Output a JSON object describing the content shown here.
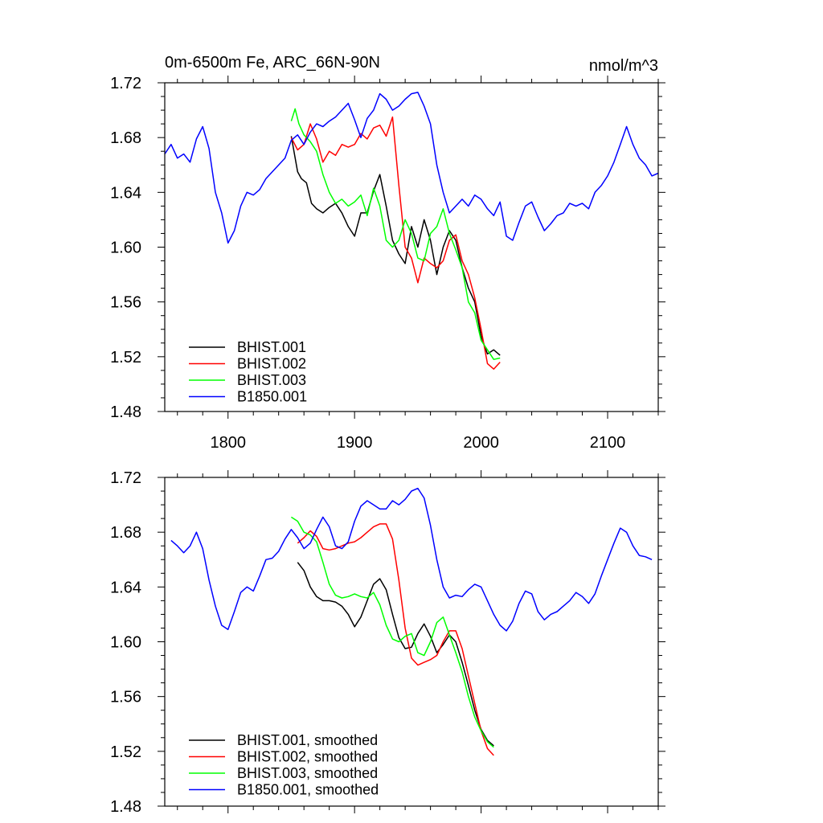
{
  "chart_data": [
    {
      "type": "line",
      "title": "0m-6500m Fe, ARC_66N-90N",
      "units": "nmol/m^3",
      "xlim": [
        1750,
        2140
      ],
      "ylim": [
        1.48,
        1.72
      ],
      "xticks": [
        1800,
        1900,
        2000,
        2100
      ],
      "xtick_labels": [
        "1800",
        "1900",
        "2000",
        "2100"
      ],
      "yticks": [
        1.48,
        1.52,
        1.56,
        1.6,
        1.64,
        1.68,
        1.72
      ],
      "ytick_labels": [
        "1.48",
        "1.52",
        "1.56",
        "1.60",
        "1.64",
        "1.68",
        "1.72"
      ],
      "legend_position": "bottom-left",
      "series": [
        {
          "name": "BHIST.001",
          "color": "#000000",
          "x": [
            1850,
            1855,
            1858,
            1862,
            1866,
            1870,
            1875,
            1880,
            1885,
            1890,
            1895,
            1900,
            1905,
            1910,
            1915,
            1920,
            1925,
            1930,
            1935,
            1940,
            1945,
            1950,
            1955,
            1960,
            1965,
            1970,
            1975,
            1980,
            1985,
            1990,
            1995,
            2000,
            2005,
            2010,
            2015
          ],
          "y": [
            1.681,
            1.655,
            1.65,
            1.647,
            1.632,
            1.628,
            1.625,
            1.629,
            1.632,
            1.625,
            1.615,
            1.608,
            1.625,
            1.625,
            1.641,
            1.653,
            1.63,
            1.605,
            1.595,
            1.588,
            1.615,
            1.6,
            1.62,
            1.605,
            1.58,
            1.6,
            1.612,
            1.605,
            1.585,
            1.57,
            1.56,
            1.535,
            1.522,
            1.525,
            1.521
          ]
        },
        {
          "name": "BHIST.002",
          "color": "#ff0000",
          "x": [
            1850,
            1855,
            1860,
            1865,
            1870,
            1875,
            1880,
            1885,
            1890,
            1895,
            1900,
            1905,
            1910,
            1915,
            1920,
            1925,
            1930,
            1935,
            1940,
            1945,
            1950,
            1955,
            1960,
            1965,
            1970,
            1975,
            1980,
            1985,
            1990,
            1995,
            2000,
            2005,
            2010,
            2015
          ],
          "y": [
            1.68,
            1.671,
            1.675,
            1.69,
            1.679,
            1.662,
            1.67,
            1.667,
            1.675,
            1.673,
            1.675,
            1.683,
            1.679,
            1.687,
            1.689,
            1.681,
            1.695,
            1.645,
            1.6,
            1.592,
            1.574,
            1.592,
            1.588,
            1.585,
            1.59,
            1.605,
            1.609,
            1.59,
            1.58,
            1.563,
            1.54,
            1.515,
            1.511,
            1.516
          ]
        },
        {
          "name": "BHIST.003",
          "color": "#00ff00",
          "x": [
            1850,
            1853,
            1856,
            1860,
            1865,
            1870,
            1875,
            1880,
            1885,
            1890,
            1895,
            1900,
            1905,
            1910,
            1915,
            1920,
            1925,
            1930,
            1935,
            1940,
            1945,
            1950,
            1955,
            1960,
            1965,
            1970,
            1975,
            1980,
            1985,
            1990,
            1995,
            2000,
            2005,
            2010,
            2015
          ],
          "y": [
            1.692,
            1.701,
            1.69,
            1.682,
            1.677,
            1.67,
            1.653,
            1.64,
            1.632,
            1.635,
            1.63,
            1.633,
            1.638,
            1.623,
            1.643,
            1.63,
            1.605,
            1.6,
            1.605,
            1.62,
            1.61,
            1.592,
            1.59,
            1.61,
            1.615,
            1.628,
            1.61,
            1.598,
            1.585,
            1.56,
            1.552,
            1.532,
            1.525,
            1.518,
            1.519
          ]
        },
        {
          "name": "B1850.001",
          "color": "#0000ff",
          "x": [
            1750,
            1755,
            1760,
            1765,
            1770,
            1775,
            1780,
            1785,
            1790,
            1795,
            1800,
            1805,
            1810,
            1815,
            1820,
            1825,
            1830,
            1835,
            1840,
            1845,
            1850,
            1855,
            1860,
            1865,
            1870,
            1875,
            1880,
            1885,
            1890,
            1895,
            1900,
            1905,
            1910,
            1915,
            1920,
            1925,
            1930,
            1935,
            1940,
            1945,
            1950,
            1955,
            1960,
            1965,
            1970,
            1975,
            1980,
            1985,
            1990,
            1995,
            2000,
            2005,
            2010,
            2015,
            2020,
            2025,
            2030,
            2035,
            2040,
            2045,
            2050,
            2055,
            2060,
            2065,
            2070,
            2075,
            2080,
            2085,
            2090,
            2095,
            2100,
            2105,
            2110,
            2115,
            2120,
            2125,
            2130,
            2135,
            2140
          ],
          "y": [
            1.668,
            1.675,
            1.665,
            1.668,
            1.662,
            1.679,
            1.688,
            1.672,
            1.64,
            1.625,
            1.603,
            1.612,
            1.63,
            1.64,
            1.638,
            1.642,
            1.65,
            1.655,
            1.66,
            1.665,
            1.678,
            1.682,
            1.675,
            1.684,
            1.69,
            1.688,
            1.692,
            1.695,
            1.7,
            1.705,
            1.693,
            1.68,
            1.694,
            1.7,
            1.712,
            1.708,
            1.7,
            1.703,
            1.708,
            1.712,
            1.713,
            1.703,
            1.69,
            1.66,
            1.64,
            1.625,
            1.63,
            1.635,
            1.63,
            1.638,
            1.635,
            1.628,
            1.623,
            1.633,
            1.608,
            1.605,
            1.618,
            1.63,
            1.633,
            1.622,
            1.612,
            1.617,
            1.623,
            1.625,
            1.632,
            1.63,
            1.632,
            1.628,
            1.64,
            1.645,
            1.652,
            1.662,
            1.675,
            1.688,
            1.675,
            1.665,
            1.66,
            1.652,
            1.654
          ]
        }
      ]
    },
    {
      "type": "line",
      "xlim": [
        1750,
        2140
      ],
      "ylim": [
        1.48,
        1.72
      ],
      "xticks": [
        1800,
        1900,
        2000,
        2100
      ],
      "yticks": [
        1.48,
        1.52,
        1.56,
        1.6,
        1.64,
        1.68,
        1.72
      ],
      "ytick_labels": [
        "1.48",
        "1.52",
        "1.56",
        "1.60",
        "1.64",
        "1.68",
        "1.72"
      ],
      "legend_position": "bottom-left",
      "series": [
        {
          "name": "BHIST.001, smoothed",
          "color": "#000000",
          "x": [
            1855,
            1860,
            1865,
            1870,
            1875,
            1880,
            1885,
            1890,
            1895,
            1900,
            1905,
            1910,
            1915,
            1920,
            1925,
            1930,
            1935,
            1940,
            1945,
            1950,
            1955,
            1960,
            1965,
            1970,
            1975,
            1980,
            1985,
            1990,
            1995,
            2000,
            2005,
            2010
          ],
          "y": [
            1.658,
            1.652,
            1.64,
            1.633,
            1.63,
            1.63,
            1.629,
            1.626,
            1.62,
            1.611,
            1.618,
            1.63,
            1.642,
            1.646,
            1.638,
            1.62,
            1.603,
            1.595,
            1.596,
            1.606,
            1.613,
            1.604,
            1.592,
            1.598,
            1.605,
            1.6,
            1.585,
            1.568,
            1.55,
            1.536,
            1.528,
            1.524
          ]
        },
        {
          "name": "BHIST.002, smoothed",
          "color": "#ff0000",
          "x": [
            1855,
            1860,
            1865,
            1870,
            1875,
            1880,
            1885,
            1890,
            1895,
            1900,
            1905,
            1910,
            1915,
            1920,
            1925,
            1930,
            1935,
            1940,
            1945,
            1950,
            1955,
            1960,
            1965,
            1970,
            1975,
            1980,
            1985,
            1990,
            1995,
            2000,
            2005,
            2010
          ],
          "y": [
            1.672,
            1.676,
            1.681,
            1.677,
            1.668,
            1.667,
            1.668,
            1.67,
            1.672,
            1.673,
            1.676,
            1.68,
            1.684,
            1.686,
            1.686,
            1.675,
            1.645,
            1.61,
            1.588,
            1.583,
            1.585,
            1.587,
            1.59,
            1.6,
            1.608,
            1.608,
            1.595,
            1.575,
            1.555,
            1.535,
            1.522,
            1.517
          ]
        },
        {
          "name": "BHIST.003, smoothed",
          "color": "#00ff00",
          "x": [
            1850,
            1855,
            1860,
            1865,
            1870,
            1875,
            1880,
            1885,
            1890,
            1895,
            1900,
            1905,
            1910,
            1915,
            1920,
            1925,
            1930,
            1935,
            1940,
            1945,
            1950,
            1955,
            1960,
            1965,
            1970,
            1975,
            1980,
            1985,
            1990,
            1995,
            2000,
            2005,
            2010
          ],
          "y": [
            1.691,
            1.688,
            1.68,
            1.678,
            1.673,
            1.658,
            1.642,
            1.634,
            1.632,
            1.633,
            1.635,
            1.633,
            1.632,
            1.636,
            1.627,
            1.612,
            1.602,
            1.6,
            1.604,
            1.606,
            1.592,
            1.59,
            1.6,
            1.614,
            1.618,
            1.605,
            1.592,
            1.578,
            1.56,
            1.545,
            1.535,
            1.527,
            1.523
          ]
        },
        {
          "name": "B1850.001, smoothed",
          "color": "#0000ff",
          "x": [
            1755,
            1760,
            1765,
            1770,
            1775,
            1780,
            1785,
            1790,
            1795,
            1800,
            1805,
            1810,
            1815,
            1820,
            1825,
            1830,
            1835,
            1840,
            1845,
            1850,
            1855,
            1860,
            1865,
            1870,
            1875,
            1880,
            1885,
            1890,
            1895,
            1900,
            1905,
            1910,
            1915,
            1920,
            1925,
            1930,
            1935,
            1940,
            1945,
            1950,
            1955,
            1960,
            1965,
            1970,
            1975,
            1980,
            1985,
            1990,
            1995,
            2000,
            2005,
            2010,
            2015,
            2020,
            2025,
            2030,
            2035,
            2040,
            2045,
            2050,
            2055,
            2060,
            2065,
            2070,
            2075,
            2080,
            2085,
            2090,
            2095,
            2100,
            2105,
            2110,
            2115,
            2120,
            2125,
            2130,
            2135
          ],
          "y": [
            1.674,
            1.67,
            1.665,
            1.67,
            1.68,
            1.668,
            1.645,
            1.626,
            1.612,
            1.609,
            1.622,
            1.636,
            1.64,
            1.637,
            1.648,
            1.66,
            1.661,
            1.666,
            1.675,
            1.682,
            1.676,
            1.668,
            1.672,
            1.682,
            1.691,
            1.684,
            1.67,
            1.668,
            1.673,
            1.688,
            1.699,
            1.703,
            1.7,
            1.697,
            1.697,
            1.703,
            1.7,
            1.704,
            1.71,
            1.712,
            1.705,
            1.685,
            1.66,
            1.64,
            1.632,
            1.634,
            1.633,
            1.638,
            1.642,
            1.64,
            1.63,
            1.62,
            1.612,
            1.608,
            1.615,
            1.628,
            1.637,
            1.635,
            1.622,
            1.616,
            1.62,
            1.622,
            1.626,
            1.63,
            1.636,
            1.633,
            1.628,
            1.635,
            1.648,
            1.66,
            1.672,
            1.683,
            1.68,
            1.67,
            1.663,
            1.662,
            1.66
          ]
        }
      ]
    }
  ]
}
